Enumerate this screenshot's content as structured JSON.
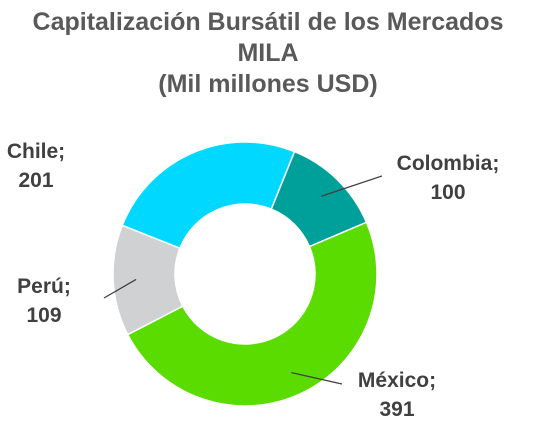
{
  "chart_data": {
    "type": "pie",
    "variant": "donut",
    "title_lines": [
      "Capitalización Bursátil de los Mercados",
      "MILA",
      "(Mil millones USD)"
    ],
    "categories": [
      "Colombia",
      "México",
      "Perú",
      "Chile"
    ],
    "values": [
      100,
      391,
      109,
      201
    ],
    "colors": [
      "#00A09A",
      "#5BDC00",
      "#CFD1D3",
      "#00D8FF"
    ],
    "data_labels": [
      {
        "name": "Colombia;",
        "value": "100"
      },
      {
        "name": "México;",
        "value": "391"
      },
      {
        "name": "Perú;",
        "value": "109"
      },
      {
        "name": "Chile;",
        "value": "201"
      }
    ],
    "legend": "none"
  }
}
